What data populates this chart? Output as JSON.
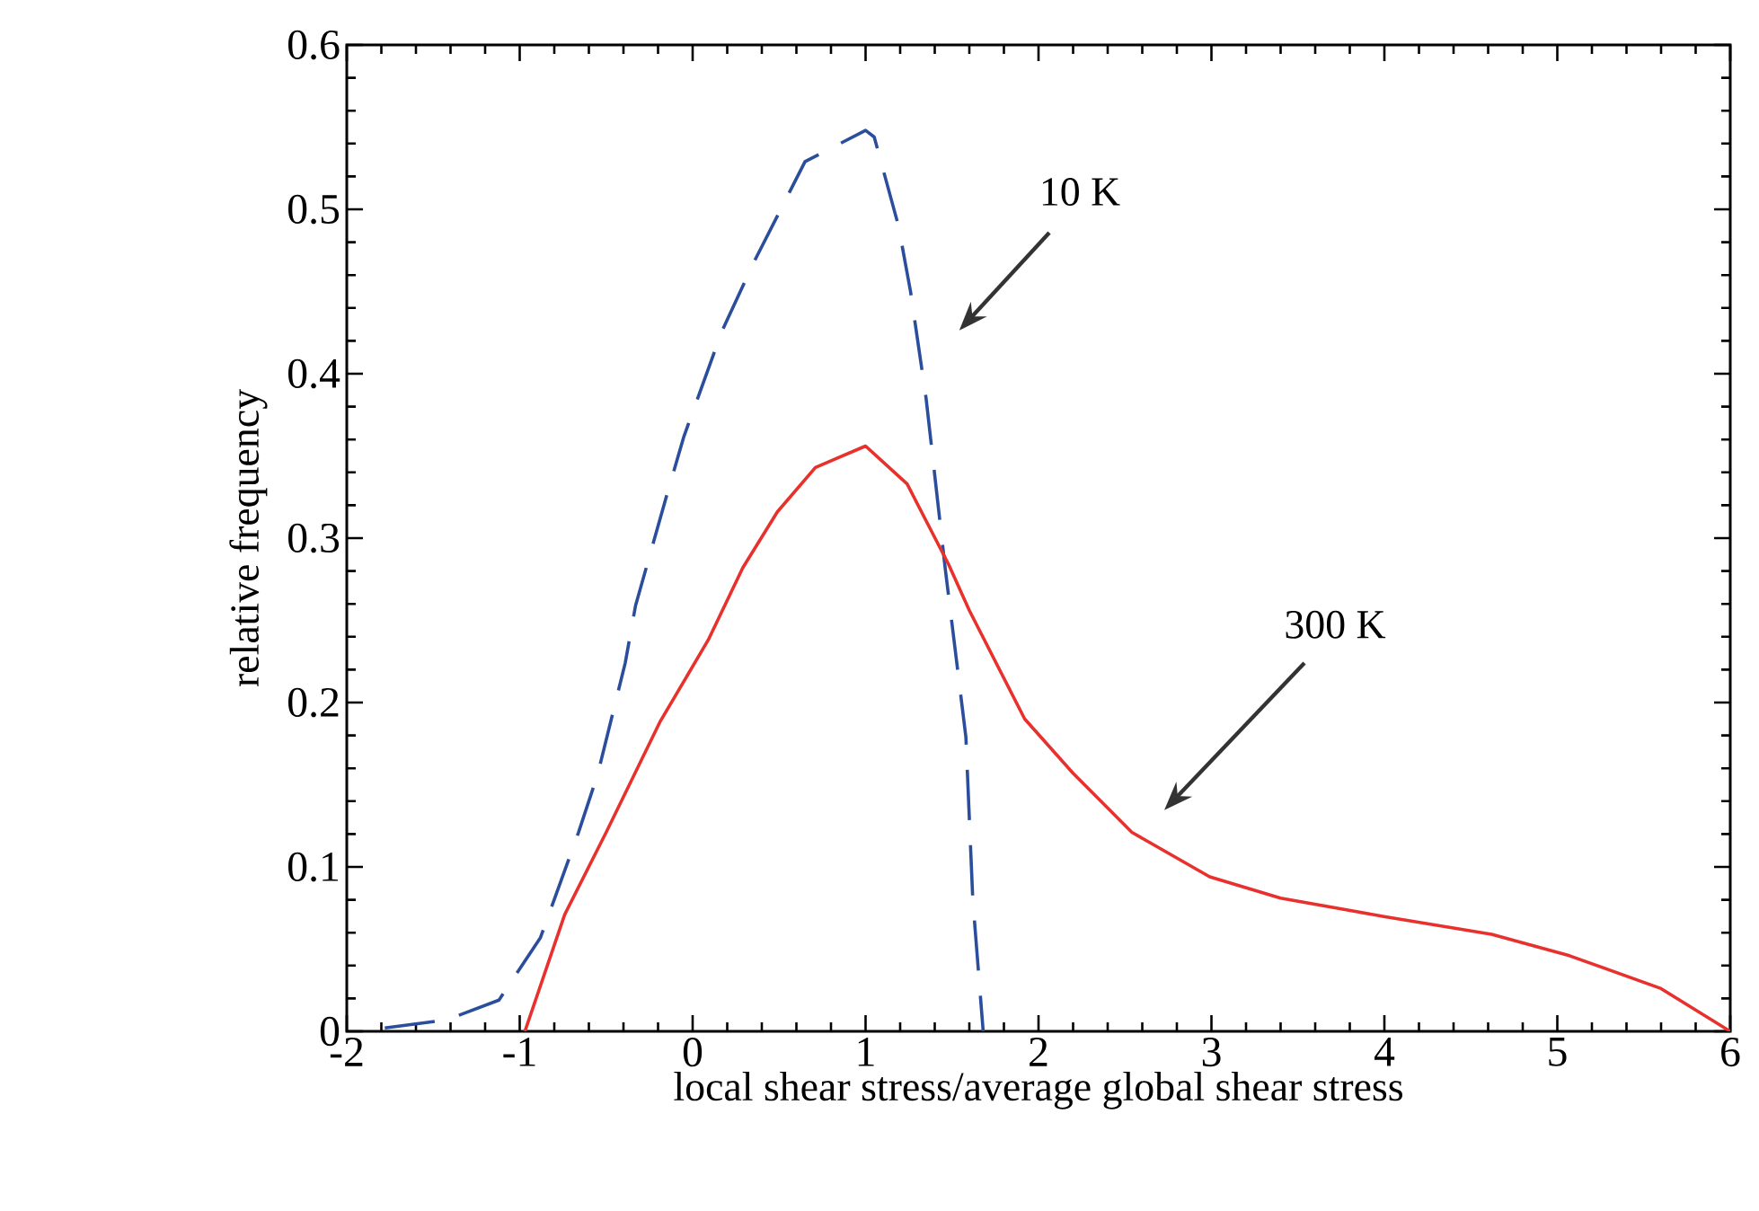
{
  "chart_data": {
    "type": "line",
    "xlabel": "local shear stress/average global shear stress",
    "ylabel": "relative frequency",
    "xlim": [
      -2,
      6
    ],
    "ylim": [
      0,
      0.6
    ],
    "xticks": [
      -2,
      -1,
      0,
      1,
      2,
      3,
      4,
      5,
      6
    ],
    "yticks": [
      0,
      0.1,
      0.2,
      0.3,
      0.4,
      0.5,
      0.6
    ],
    "grid": false,
    "marker": "none",
    "annotations": [
      "10 K",
      "300 K"
    ],
    "series": [
      {
        "color": "#2a4d9c",
        "line_style": "dashed",
        "x": [
          -1.78,
          -1.42,
          -1.12,
          -0.88,
          -0.66,
          -0.55,
          -0.39,
          -0.33,
          -0.15,
          -0.05,
          0.17,
          0.35,
          0.65,
          1.0,
          1.05,
          1.19,
          1.26,
          1.35,
          1.46,
          1.58,
          1.62,
          1.68
        ],
        "values": [
          0.002,
          0.007,
          0.019,
          0.057,
          0.121,
          0.156,
          0.224,
          0.259,
          0.326,
          0.362,
          0.426,
          0.467,
          0.529,
          0.548,
          0.544,
          0.49,
          0.45,
          0.385,
          0.282,
          0.179,
          0.08,
          0.0
        ]
      },
      {
        "color": "#e8302c",
        "line_style": "solid",
        "x": [
          -0.97,
          -0.74,
          -0.5,
          -0.19,
          0.09,
          0.29,
          0.49,
          0.71,
          1.0,
          1.24,
          1.48,
          1.6,
          1.92,
          2.2,
          2.54,
          2.99,
          3.4,
          3.99,
          4.62,
          5.07,
          5.6,
          6.0
        ],
        "values": [
          0.0,
          0.071,
          0.121,
          0.188,
          0.238,
          0.282,
          0.316,
          0.343,
          0.356,
          0.333,
          0.284,
          0.256,
          0.19,
          0.157,
          0.121,
          0.094,
          0.081,
          0.07,
          0.059,
          0.046,
          0.026,
          0.0
        ]
      }
    ]
  }
}
